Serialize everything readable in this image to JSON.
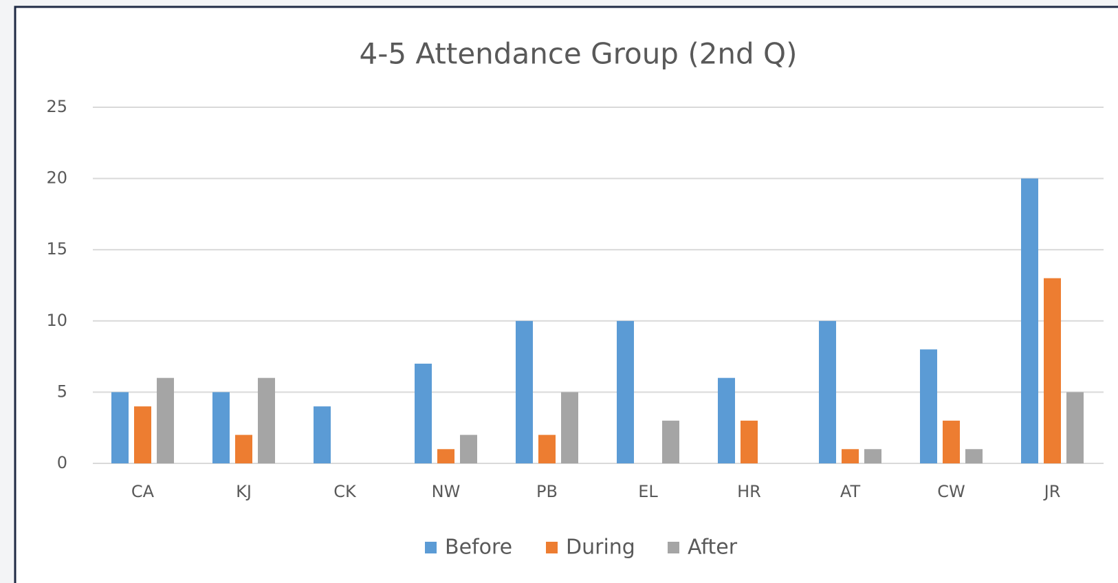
{
  "chart_data": {
    "type": "bar",
    "title": "4-5 Attendance Group (2nd Q)",
    "categories": [
      "CA",
      "KJ",
      "CK",
      "NW",
      "PB",
      "EL",
      "HR",
      "AT",
      "CW",
      "JR"
    ],
    "series": [
      {
        "name": "Before",
        "color": "#5b9bd5",
        "values": [
          5,
          5,
          4,
          7,
          10,
          10,
          6,
          10,
          8,
          20
        ]
      },
      {
        "name": "During",
        "color": "#ed7d31",
        "values": [
          4,
          2,
          0,
          1,
          2,
          0,
          3,
          1,
          3,
          13
        ]
      },
      {
        "name": "After",
        "color": "#a5a5a5",
        "values": [
          6,
          6,
          0,
          2,
          5,
          3,
          0,
          1,
          1,
          5
        ]
      }
    ],
    "ylim": [
      0,
      25
    ],
    "yticks": [
      0,
      5,
      10,
      15,
      20,
      25
    ],
    "grid": true,
    "legend": "bottom"
  }
}
